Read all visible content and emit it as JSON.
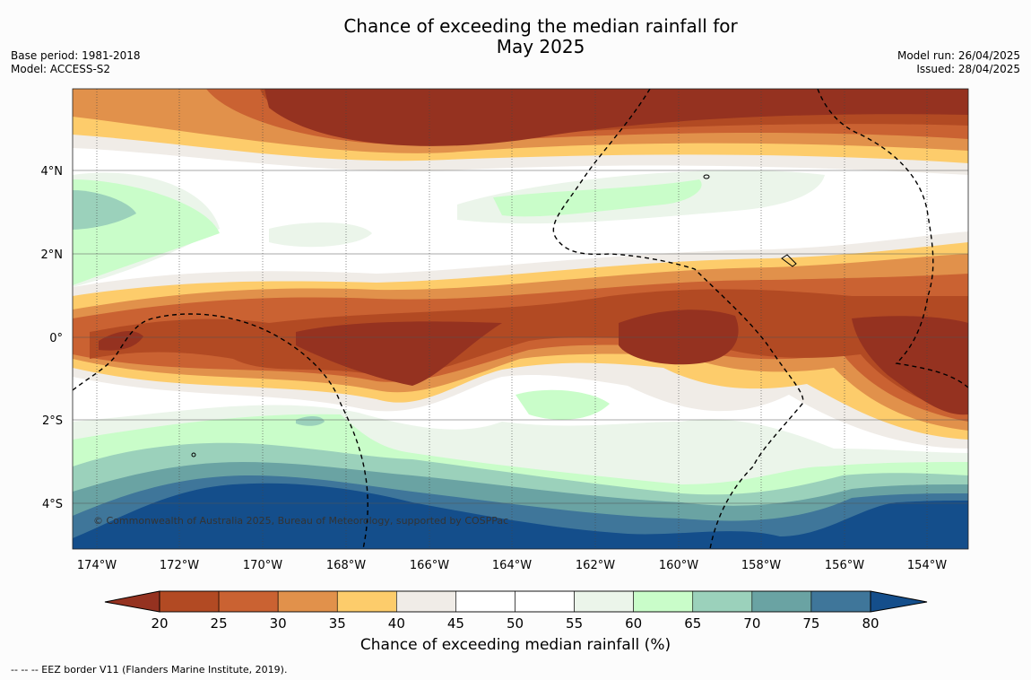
{
  "header": {
    "title_line1": "Chance of exceeding the median rainfall for",
    "title_line2": "May 2025",
    "base_period": "Base period: 1981-2018",
    "model": "Model: ACCESS-S2",
    "model_run": "Model run: 26/04/2025",
    "issued": "Issued: 28/04/2025"
  },
  "map": {
    "lat_labels": [
      "4°N",
      "2°N",
      "0°",
      "2°S",
      "4°S"
    ],
    "lon_labels": [
      "174°W",
      "172°W",
      "170°W",
      "168°W",
      "166°W",
      "164°W",
      "162°W",
      "160°W",
      "158°W",
      "156°W",
      "154°W"
    ],
    "copyright": "© Commonwealth of Australia 2025, Bureau of Meteorology, supported by COSPPac"
  },
  "colorbar": {
    "ticks": [
      "20",
      "25",
      "30",
      "35",
      "40",
      "45",
      "50",
      "55",
      "60",
      "65",
      "70",
      "75",
      "80"
    ],
    "colors": [
      "#b24a23",
      "#ca6232",
      "#e1914b",
      "#fdcc6b",
      "#f0ece7",
      "#ffffff",
      "#ffffff",
      "#ebf5ea",
      "#c9fdc9",
      "#9bd1bb",
      "#6aa3a3",
      "#3f769a"
    ],
    "under_color": "#953220",
    "over_color": "#144e8b",
    "label": "Chance of exceeding median rainfall (%)"
  },
  "footer": {
    "eez_note": "--  --  -- EEZ border V11 (Flanders Marine Institute, 2019)."
  }
}
